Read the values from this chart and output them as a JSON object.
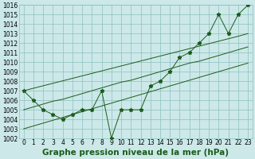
{
  "title": "Graphe pression niveau de la mer (hPa)",
  "x_values": [
    0,
    1,
    2,
    3,
    4,
    5,
    6,
    7,
    8,
    9,
    10,
    11,
    12,
    13,
    14,
    15,
    16,
    17,
    18,
    19,
    20,
    21,
    22,
    23
  ],
  "y_values": [
    1007,
    1006,
    1005,
    1004.5,
    1004,
    1004.5,
    1005,
    1005,
    1007,
    1002,
    1005,
    1005,
    1005,
    1007.5,
    1008,
    1009,
    1010.5,
    1011,
    1012,
    1013,
    1015,
    1013,
    1015,
    1016
  ],
  "trend_upper": [
    1007.0,
    1007.26,
    1007.52,
    1007.78,
    1008.04,
    1008.3,
    1008.56,
    1008.82,
    1009.08,
    1009.34,
    1009.6,
    1009.86,
    1010.12,
    1010.38,
    1010.64,
    1010.9,
    1011.16,
    1011.42,
    1011.68,
    1011.94,
    1012.2,
    1012.46,
    1012.72,
    1013.0
  ],
  "trend_lower": [
    1003.0,
    1003.3,
    1003.6,
    1003.9,
    1004.2,
    1004.5,
    1004.8,
    1005.1,
    1005.4,
    1005.7,
    1006.0,
    1006.3,
    1006.6,
    1006.9,
    1007.2,
    1007.5,
    1007.8,
    1008.1,
    1008.4,
    1008.7,
    1009.0,
    1009.3,
    1009.6,
    1009.9
  ],
  "trend_mid": [
    1005.0,
    1005.3,
    1005.6,
    1005.9,
    1006.1,
    1006.4,
    1006.7,
    1007.0,
    1007.3,
    1007.6,
    1007.9,
    1008.1,
    1008.4,
    1008.7,
    1009.0,
    1009.3,
    1009.6,
    1009.9,
    1010.1,
    1010.4,
    1010.7,
    1011.0,
    1011.3,
    1011.6
  ],
  "line_color": "#1a5c1a",
  "bg_color": "#cce8e8",
  "grid_color": "#8fbfbf",
  "ylim": [
    1002,
    1016
  ],
  "xlim": [
    -0.5,
    23.5
  ],
  "yticks": [
    1002,
    1003,
    1004,
    1005,
    1006,
    1007,
    1008,
    1009,
    1010,
    1011,
    1012,
    1013,
    1014,
    1015,
    1016
  ],
  "xticks": [
    0,
    1,
    2,
    3,
    4,
    5,
    6,
    7,
    8,
    9,
    10,
    11,
    12,
    13,
    14,
    15,
    16,
    17,
    18,
    19,
    20,
    21,
    22,
    23
  ],
  "title_fontsize": 7.5,
  "tick_fontsize": 5.5
}
